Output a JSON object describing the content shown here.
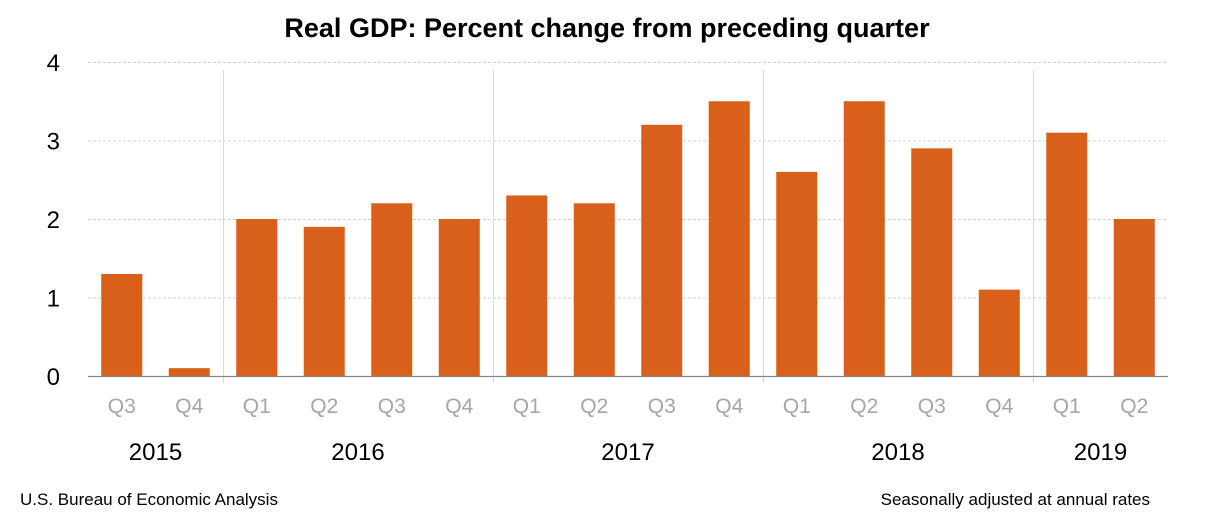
{
  "chart_data": {
    "type": "bar",
    "title": "Real GDP:  Percent change from preceding quarter",
    "xlabel": "",
    "ylabel": "",
    "ylim": [
      0,
      4
    ],
    "yticks": [
      "0",
      "1",
      "2",
      "3",
      "4"
    ],
    "grid": true,
    "bar_color": "#d9601a",
    "groups": [
      {
        "year": "2015",
        "quarters": [
          "Q3",
          "Q4"
        ],
        "values": [
          1.3,
          0.1
        ]
      },
      {
        "year": "2016",
        "quarters": [
          "Q1",
          "Q2",
          "Q3",
          "Q4"
        ],
        "values": [
          2.0,
          1.9,
          2.2,
          2.0
        ]
      },
      {
        "year": "2017",
        "quarters": [
          "Q1",
          "Q2",
          "Q3",
          "Q4"
        ],
        "values": [
          2.3,
          2.2,
          3.2,
          3.5
        ]
      },
      {
        "year": "2018",
        "quarters": [
          "Q1",
          "Q2",
          "Q3",
          "Q4"
        ],
        "values": [
          2.6,
          3.5,
          2.9,
          1.1
        ]
      },
      {
        "year": "2019",
        "quarters": [
          "Q1",
          "Q2"
        ],
        "values": [
          3.1,
          2.0
        ]
      }
    ]
  },
  "footer": {
    "source": "U.S. Bureau of Economic Analysis",
    "note": "Seasonally adjusted at annual rates"
  }
}
